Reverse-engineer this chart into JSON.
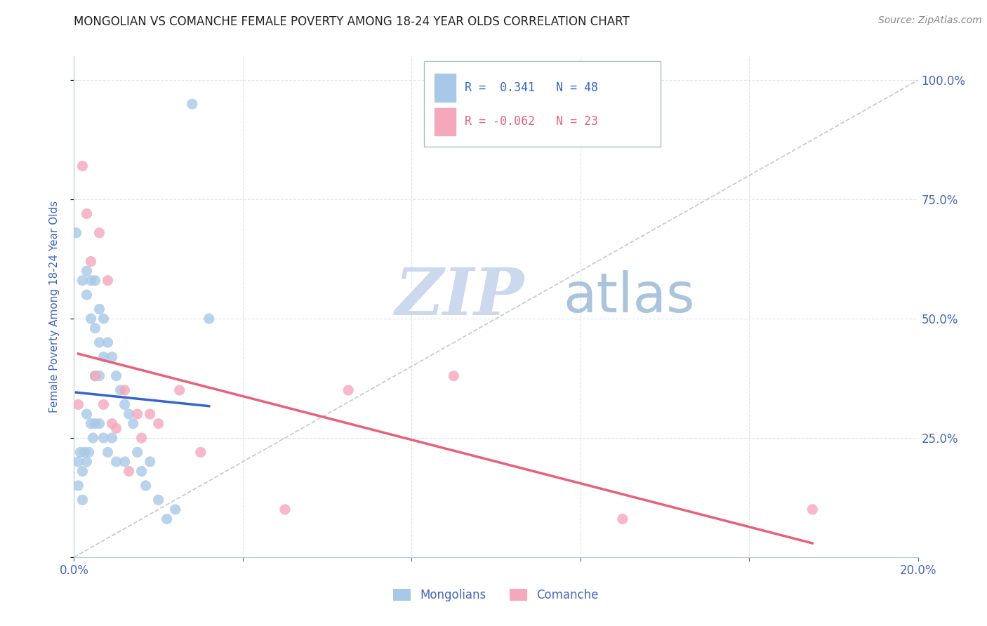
{
  "title": "MONGOLIAN VS COMANCHE FEMALE POVERTY AMONG 18-24 YEAR OLDS CORRELATION CHART",
  "source": "Source: ZipAtlas.com",
  "ylabel": "Female Poverty Among 18-24 Year Olds",
  "legend_mongolian": "Mongolians",
  "legend_comanche": "Comanche",
  "r_mongolian": "0.341",
  "n_mongolian": "48",
  "r_comanche": "-0.062",
  "n_comanche": "23",
  "mongolian_color": "#a8c8e8",
  "comanche_color": "#f5a8bc",
  "mongolian_line_color": "#3366cc",
  "comanche_line_color": "#e8607a",
  "diagonal_color": "#c8c8c8",
  "background_color": "#ffffff",
  "grid_color": "#dde4f0",
  "title_color": "#222222",
  "axis_label_color": "#4466bb",
  "watermark_zip_color": "#ccd8ee",
  "watermark_atlas_color": "#88aacc",
  "mongolian_x": [
    0.0005,
    0.001,
    0.001,
    0.0015,
    0.002,
    0.002,
    0.002,
    0.0025,
    0.003,
    0.003,
    0.003,
    0.003,
    0.0035,
    0.004,
    0.004,
    0.004,
    0.0045,
    0.005,
    0.005,
    0.005,
    0.005,
    0.006,
    0.006,
    0.006,
    0.006,
    0.007,
    0.007,
    0.007,
    0.008,
    0.008,
    0.009,
    0.009,
    0.01,
    0.01,
    0.011,
    0.012,
    0.012,
    0.013,
    0.014,
    0.015,
    0.016,
    0.017,
    0.018,
    0.02,
    0.022,
    0.024,
    0.028,
    0.032
  ],
  "mongolian_y": [
    0.68,
    0.2,
    0.15,
    0.22,
    0.58,
    0.18,
    0.12,
    0.22,
    0.6,
    0.55,
    0.3,
    0.2,
    0.22,
    0.58,
    0.5,
    0.28,
    0.25,
    0.58,
    0.48,
    0.38,
    0.28,
    0.52,
    0.45,
    0.38,
    0.28,
    0.5,
    0.42,
    0.25,
    0.45,
    0.22,
    0.42,
    0.25,
    0.38,
    0.2,
    0.35,
    0.32,
    0.2,
    0.3,
    0.28,
    0.22,
    0.18,
    0.15,
    0.2,
    0.12,
    0.08,
    0.1,
    0.95,
    0.5
  ],
  "comanche_x": [
    0.001,
    0.002,
    0.003,
    0.004,
    0.005,
    0.006,
    0.007,
    0.008,
    0.009,
    0.01,
    0.012,
    0.013,
    0.015,
    0.016,
    0.018,
    0.02,
    0.025,
    0.03,
    0.05,
    0.065,
    0.09,
    0.13,
    0.175
  ],
  "comanche_y": [
    0.32,
    0.82,
    0.72,
    0.62,
    0.38,
    0.68,
    0.32,
    0.58,
    0.28,
    0.27,
    0.35,
    0.18,
    0.3,
    0.25,
    0.3,
    0.28,
    0.35,
    0.22,
    0.1,
    0.35,
    0.38,
    0.08,
    0.1
  ],
  "xlim": [
    0.0,
    0.2
  ],
  "ylim": [
    0.0,
    1.05
  ],
  "x_ticks": [
    0.0,
    0.04,
    0.08,
    0.12,
    0.16,
    0.2
  ],
  "y_ticks": [
    0.0,
    0.25,
    0.5,
    0.75,
    1.0
  ],
  "right_y_ticks": [
    0.25,
    0.5,
    0.75,
    1.0
  ],
  "right_y_labels": [
    "25.0%",
    "50.0%",
    "75.0%",
    "100.0%"
  ]
}
